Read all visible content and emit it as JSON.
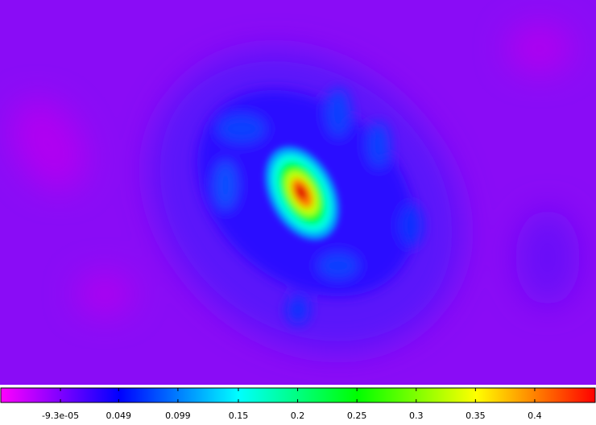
{
  "chart_data": {
    "type": "image",
    "colormap": [
      "#ff00ff",
      "#0000ff",
      "#00ffff",
      "#00ff00",
      "#ffff00",
      "#ff0000"
    ],
    "clim": [
      -0.0504,
      0.451
    ],
    "cticks": [
      {
        "value": -9.3e-05,
        "label": "-9.3e-05"
      },
      0.049,
      0.099,
      0.15,
      0.2,
      0.25,
      0.3,
      0.35,
      0.4
    ]
  }
}
